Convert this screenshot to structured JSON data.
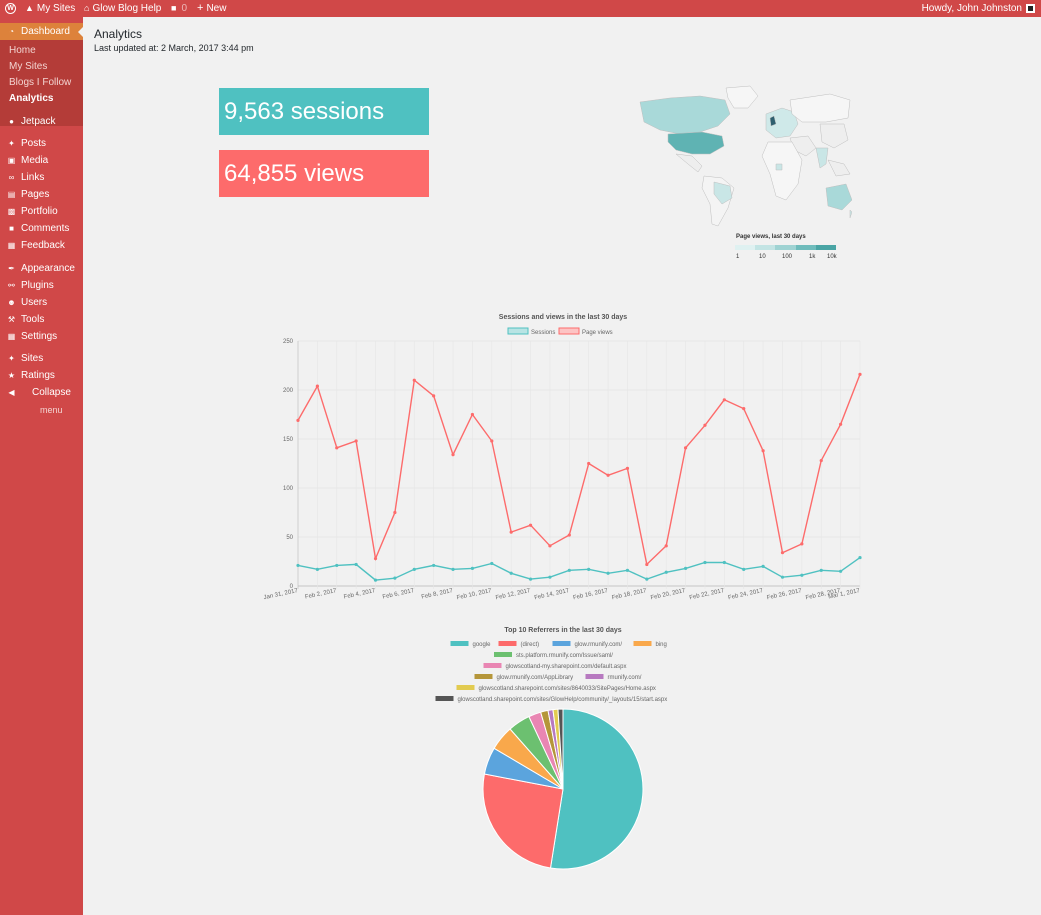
{
  "adminbar": {
    "my_sites": "My Sites",
    "site_name": "Glow Blog Help",
    "comments_count": "0",
    "new_label": "New",
    "howdy": "Howdy, John Johnston"
  },
  "sidebar": {
    "dashboard": "Dashboard",
    "submenu": [
      "Home",
      "My Sites",
      "Blogs I Follow",
      "Analytics"
    ],
    "items": [
      {
        "label": "Jetpack",
        "icon": "jetpack-icon"
      },
      {
        "label": "Posts",
        "icon": "pin-icon"
      },
      {
        "label": "Media",
        "icon": "media-icon"
      },
      {
        "label": "Links",
        "icon": "link-icon"
      },
      {
        "label": "Pages",
        "icon": "page-icon"
      },
      {
        "label": "Portfolio",
        "icon": "portfolio-icon"
      },
      {
        "label": "Comments",
        "icon": "comment-icon"
      },
      {
        "label": "Feedback",
        "icon": "feedback-icon"
      },
      {
        "label": "Appearance",
        "icon": "brush-icon"
      },
      {
        "label": "Plugins",
        "icon": "plugin-icon"
      },
      {
        "label": "Users",
        "icon": "user-icon"
      },
      {
        "label": "Tools",
        "icon": "wrench-icon"
      },
      {
        "label": "Settings",
        "icon": "settings-icon"
      },
      {
        "label": "Sites",
        "icon": "pin-icon"
      },
      {
        "label": "Ratings",
        "icon": "star-icon"
      },
      {
        "label": "Collapse",
        "icon": "collapse-icon"
      }
    ],
    "collapse_sub": "menu"
  },
  "content": {
    "title": "Analytics",
    "last_updated": "Last updated at: 2 March, 2017 3:44 pm",
    "sessions": "9,563 sessions",
    "views": "64,855 views"
  },
  "map": {
    "legend_title": "Page views, last 30 days",
    "legend_ticks": [
      "1",
      "10",
      "100",
      "1k",
      "10k"
    ]
  },
  "colors": {
    "brand": "#d04848",
    "brand_dark": "#b43c38",
    "current": "#dd823b",
    "sessions": "#4fc1c1",
    "views": "#fd6b6b"
  },
  "chart_data": [
    {
      "type": "line",
      "title": "Sessions and views in the last 30 days",
      "x": [
        "Jan 31, 2017",
        "Feb 1",
        "Feb 2, 2017",
        "Feb 3",
        "Feb 4, 2017",
        "Feb 5",
        "Feb 6, 2017",
        "Feb 7",
        "Feb 8, 2017",
        "Feb 9",
        "Feb 10, 2017",
        "Feb 11",
        "Feb 12, 2017",
        "Feb 13",
        "Feb 14, 2017",
        "Feb 15",
        "Feb 16, 2017",
        "Feb 17",
        "Feb 18, 2017",
        "Feb 19",
        "Feb 20, 2017",
        "Feb 21",
        "Feb 22, 2017",
        "Feb 23",
        "Feb 24, 2017",
        "Feb 25",
        "Feb 26, 2017",
        "Feb 27",
        "Feb 28, 2017",
        "Mar 1, 2017"
      ],
      "tick_labels": [
        "Jan 31, 2017",
        "",
        "Feb 2, 2017",
        "",
        "Feb 4, 2017",
        "",
        "Feb 6, 2017",
        "",
        "Feb 8, 2017",
        "",
        "Feb 10, 2017",
        "",
        "Feb 12, 2017",
        "",
        "Feb 14, 2017",
        "",
        "Feb 16, 2017",
        "",
        "Feb 18, 2017",
        "",
        "Feb 20, 2017",
        "",
        "Feb 22, 2017",
        "",
        "Feb 24, 2017",
        "",
        "Feb 26, 2017",
        "",
        "Feb 28, 2017",
        "Mar 1, 2017"
      ],
      "series": [
        {
          "name": "Sessions",
          "color": "#4fc1c1",
          "values": [
            21,
            17,
            21,
            22,
            6,
            8,
            17,
            21,
            17,
            18,
            23,
            13,
            7,
            9,
            16,
            17,
            13,
            16,
            7,
            14,
            18,
            24,
            24,
            17,
            20,
            9,
            11,
            16,
            15,
            29
          ]
        },
        {
          "name": "Page views",
          "color": "#fd6b6b",
          "values": [
            169,
            204,
            141,
            148,
            28,
            75,
            210,
            194,
            134,
            175,
            148,
            55,
            62,
            41,
            52,
            125,
            113,
            120,
            22,
            41,
            141,
            164,
            190,
            181,
            138,
            34,
            43,
            128,
            165,
            216
          ]
        }
      ],
      "ylim": [
        0,
        250
      ],
      "yticks": [
        0,
        50,
        100,
        150,
        200,
        250
      ],
      "grid": true,
      "legend": "top"
    },
    {
      "type": "pie",
      "title": "Top 10 Referrers in the last 30 days",
      "legend": "top",
      "slices": [
        {
          "label": "google",
          "value": 52.5,
          "color": "#4fc1c1"
        },
        {
          "label": "(direct)",
          "value": 25.5,
          "color": "#fd6b6b"
        },
        {
          "label": "glow.rmunify.com/",
          "value": 5.5,
          "color": "#5ba4dd"
        },
        {
          "label": "bing",
          "value": 5.0,
          "color": "#f9a84b"
        },
        {
          "label": "sts.platform.rmunify.com/Issue/saml/",
          "value": 4.5,
          "color": "#6cc070"
        },
        {
          "label": "glowscotland-my.sharepoint.com/default.aspx",
          "value": 2.5,
          "color": "#e986b3"
        },
        {
          "label": "glow.rmunify.com/AppLibrary",
          "value": 1.5,
          "color": "#b5963a"
        },
        {
          "label": "rmunify.com/",
          "value": 1.0,
          "color": "#b779c0"
        },
        {
          "label": "glowscotland.sharepoint.com/sites/8640033/SitePages/Home.aspx",
          "value": 1.0,
          "color": "#e2cb50"
        },
        {
          "label": "glowscotland.sharepoint.com/sites/GlowHelp/community/_layouts/15/start.aspx",
          "value": 1.0,
          "color": "#555555"
        }
      ]
    }
  ]
}
